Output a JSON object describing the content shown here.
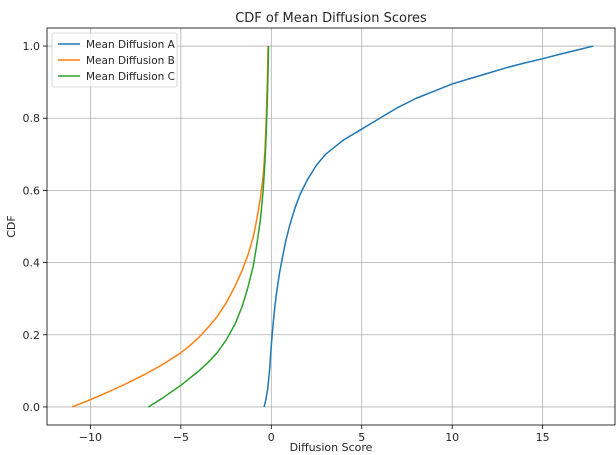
{
  "chart_data": {
    "type": "line",
    "title": "CDF of Mean Diffusion Scores",
    "xlabel": "Diffusion Score",
    "ylabel": "CDF",
    "xlim": [
      -12.4,
      19.0
    ],
    "ylim": [
      -0.05,
      1.05
    ],
    "xticks": [
      -10,
      -5,
      0,
      5,
      10,
      15
    ],
    "xtick_labels": [
      "−10",
      "−5",
      "0",
      "5",
      "10",
      "15"
    ],
    "yticks": [
      0.0,
      0.2,
      0.4,
      0.6,
      0.8,
      1.0
    ],
    "ytick_labels": [
      "0.0",
      "0.2",
      "0.4",
      "0.6",
      "0.8",
      "1.0"
    ],
    "grid": true,
    "legend_position": "top-left",
    "series": [
      {
        "name": "Mean Diffusion A",
        "color": "#1f77b4",
        "x": [
          -0.4,
          -0.3,
          -0.2,
          -0.1,
          0.0,
          0.1,
          0.2,
          0.3,
          0.45,
          0.6,
          0.8,
          1.0,
          1.3,
          1.6,
          2.0,
          2.5,
          3.0,
          3.5,
          4.0,
          5.0,
          6.0,
          7.0,
          8.0,
          9.0,
          10.0,
          11.0,
          12.0,
          13.0,
          14.0,
          15.0,
          16.0,
          17.0,
          17.8
        ],
        "y": [
          0.0,
          0.02,
          0.05,
          0.1,
          0.17,
          0.23,
          0.28,
          0.32,
          0.37,
          0.41,
          0.46,
          0.5,
          0.55,
          0.59,
          0.63,
          0.67,
          0.7,
          0.72,
          0.74,
          0.77,
          0.8,
          0.83,
          0.855,
          0.875,
          0.895,
          0.91,
          0.925,
          0.94,
          0.953,
          0.965,
          0.978,
          0.99,
          1.0
        ]
      },
      {
        "name": "Mean Diffusion B",
        "color": "#ff7f0e",
        "x": [
          -11.0,
          -10.0,
          -9.0,
          -8.0,
          -7.0,
          -6.0,
          -5.0,
          -4.5,
          -4.0,
          -3.5,
          -3.0,
          -2.5,
          -2.0,
          -1.6,
          -1.3,
          -1.0,
          -0.8,
          -0.6,
          -0.45,
          -0.35,
          -0.28,
          -0.22,
          -0.18
        ],
        "y": [
          0.0,
          0.02,
          0.042,
          0.065,
          0.09,
          0.118,
          0.15,
          0.17,
          0.193,
          0.22,
          0.25,
          0.288,
          0.335,
          0.38,
          0.42,
          0.47,
          0.52,
          0.58,
          0.64,
          0.71,
          0.8,
          0.9,
          1.0
        ]
      },
      {
        "name": "Mean Diffusion C",
        "color": "#2ca02c",
        "x": [
          -6.8,
          -6.0,
          -5.0,
          -4.0,
          -3.5,
          -3.0,
          -2.5,
          -2.0,
          -1.6,
          -1.3,
          -1.0,
          -0.8,
          -0.6,
          -0.45,
          -0.35,
          -0.28,
          -0.22,
          -0.18,
          -0.15
        ],
        "y": [
          0.0,
          0.025,
          0.06,
          0.1,
          0.123,
          0.15,
          0.185,
          0.23,
          0.28,
          0.33,
          0.39,
          0.45,
          0.52,
          0.6,
          0.68,
          0.76,
          0.85,
          0.93,
          1.0
        ]
      }
    ]
  }
}
